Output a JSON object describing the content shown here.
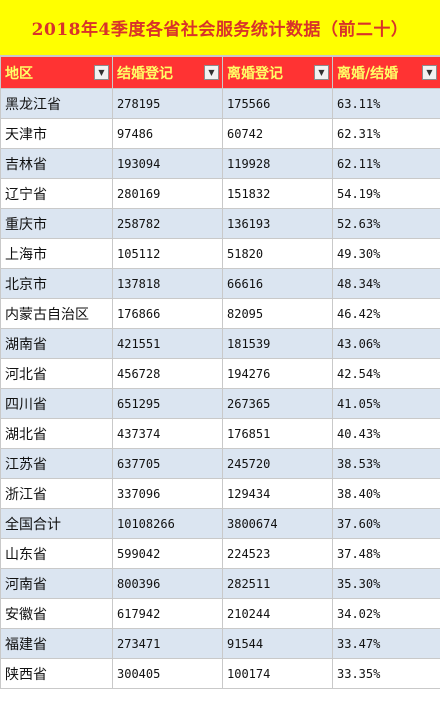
{
  "title": "2018年4季度各省社会服务统计数据（前二十）",
  "headers": [
    "地区",
    "结婚登记",
    "离婚登记",
    "离婚/结婚"
  ],
  "filter_icon": "▼",
  "rows": [
    [
      "黑龙江省",
      "278195",
      "175566",
      "63.11%"
    ],
    [
      "天津市",
      "97486",
      "60742",
      "62.31%"
    ],
    [
      "吉林省",
      "193094",
      "119928",
      "62.11%"
    ],
    [
      "辽宁省",
      "280169",
      "151832",
      "54.19%"
    ],
    [
      "重庆市",
      "258782",
      "136193",
      "52.63%"
    ],
    [
      "上海市",
      "105112",
      "51820",
      "49.30%"
    ],
    [
      "北京市",
      "137818",
      "66616",
      "48.34%"
    ],
    [
      "内蒙古自治区",
      "176866",
      "82095",
      "46.42%"
    ],
    [
      "湖南省",
      "421551",
      "181539",
      "43.06%"
    ],
    [
      "河北省",
      "456728",
      "194276",
      "42.54%"
    ],
    [
      "四川省",
      "651295",
      "267365",
      "41.05%"
    ],
    [
      "湖北省",
      "437374",
      "176851",
      "40.43%"
    ],
    [
      "江苏省",
      "637705",
      "245720",
      "38.53%"
    ],
    [
      "浙江省",
      "337096",
      "129434",
      "38.40%"
    ],
    [
      "全国合计",
      "10108266",
      "3800674",
      "37.60%"
    ],
    [
      "山东省",
      "599042",
      "224523",
      "37.48%"
    ],
    [
      "河南省",
      "800396",
      "282511",
      "35.30%"
    ],
    [
      "安徽省",
      "617942",
      "210244",
      "34.02%"
    ],
    [
      "福建省",
      "273471",
      "91544",
      "33.47%"
    ],
    [
      "陕西省",
      "300405",
      "100174",
      "33.35%"
    ]
  ]
}
